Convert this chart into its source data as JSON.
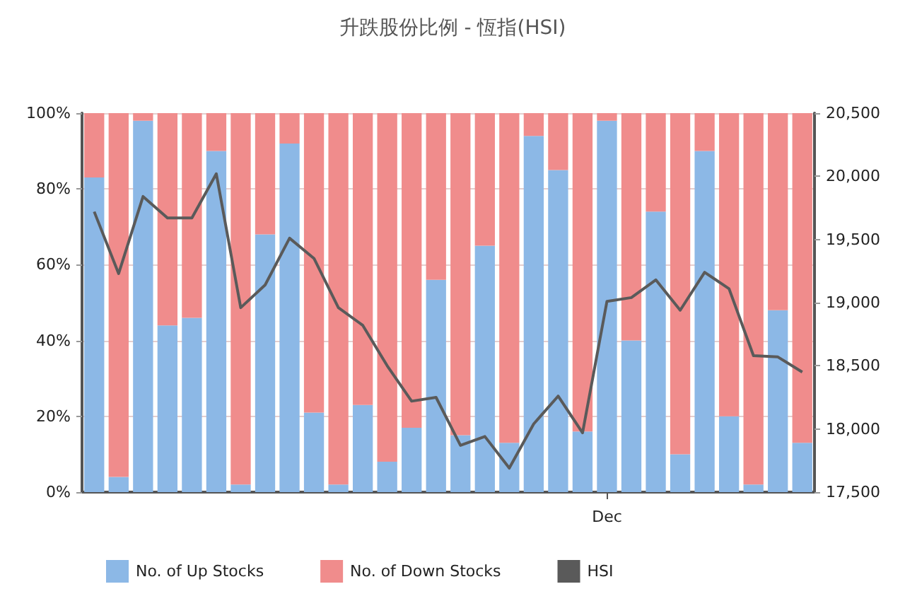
{
  "chart_data": {
    "type": "bar",
    "title": "升跌股份比例 - 恆指(HSI)",
    "stacked": true,
    "categories": [
      null,
      null,
      null,
      null,
      null,
      null,
      null,
      null,
      null,
      null,
      null,
      null,
      null,
      null,
      null,
      null,
      null,
      null,
      null,
      null,
      null,
      "Dec",
      null,
      null,
      null,
      null,
      null,
      null,
      null,
      null
    ],
    "series": [
      {
        "name": "No. of Up Stocks",
        "color": "#8cb8e6",
        "values": [
          83,
          4,
          98,
          44,
          46,
          90,
          2,
          68,
          92,
          21,
          2,
          23,
          8,
          17,
          56,
          15,
          65,
          13,
          94,
          85,
          16,
          98,
          40,
          74,
          10,
          90,
          20,
          2,
          48,
          13
        ]
      },
      {
        "name": "No. of Down Stocks",
        "color": "#f08c8c",
        "values": [
          17,
          96,
          2,
          56,
          54,
          10,
          98,
          32,
          8,
          79,
          98,
          77,
          92,
          83,
          44,
          85,
          35,
          87,
          6,
          15,
          84,
          2,
          60,
          26,
          90,
          10,
          80,
          98,
          52,
          87
        ]
      },
      {
        "name": "HSI",
        "type": "line",
        "axis": "y2",
        "color": "#5a5a5a",
        "values": [
          19720,
          19230,
          19840,
          19670,
          19670,
          20020,
          18960,
          19140,
          19510,
          19350,
          18960,
          18820,
          18500,
          18220,
          18250,
          17870,
          17940,
          17690,
          18040,
          18260,
          17970,
          19010,
          19040,
          19180,
          18940,
          19240,
          19110,
          18580,
          18570,
          18450
        ]
      }
    ],
    "ylim": [
      0,
      100
    ],
    "yticks": [
      {
        "value": 0,
        "label": "0%"
      },
      {
        "value": 20,
        "label": "20%"
      },
      {
        "value": 40,
        "label": "40%"
      },
      {
        "value": 60,
        "label": "60%"
      },
      {
        "value": 80,
        "label": "80%"
      },
      {
        "value": 100,
        "label": "100%"
      }
    ],
    "y2lim": [
      17500,
      20500
    ],
    "y2ticks": [
      {
        "value": 17500,
        "label": "17,500"
      },
      {
        "value": 18000,
        "label": "18,000"
      },
      {
        "value": 18500,
        "label": "18,500"
      },
      {
        "value": 19000,
        "label": "19,000"
      },
      {
        "value": 19500,
        "label": "19,500"
      },
      {
        "value": 20000,
        "label": "20,000"
      },
      {
        "value": 20500,
        "label": "20,500"
      }
    ],
    "grid": "y",
    "legend": "bottom",
    "marker": "none",
    "line_style": "solid"
  }
}
